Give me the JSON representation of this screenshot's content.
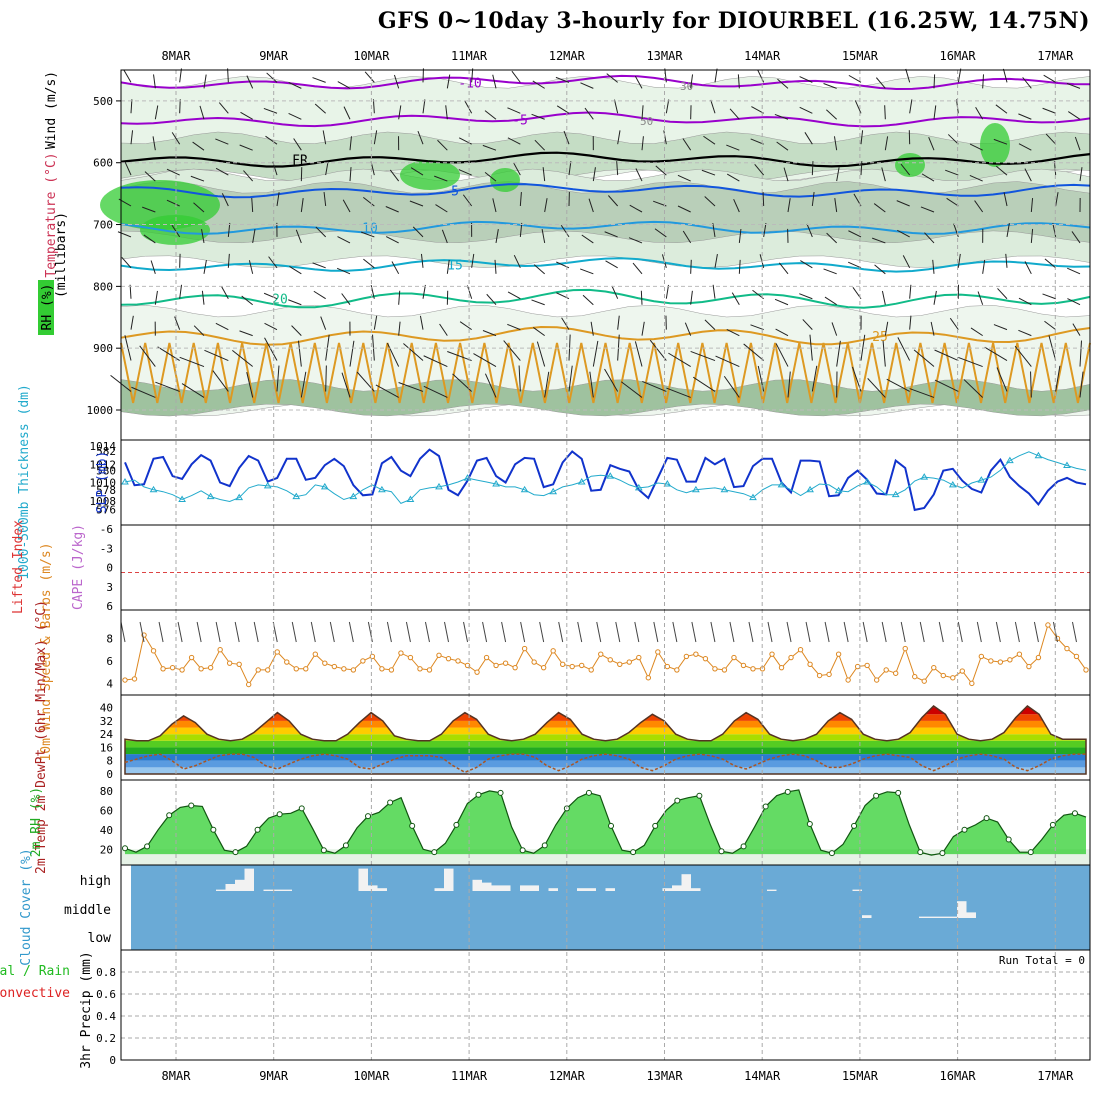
{
  "title": "GFS 0~10day 3-hourly for DIOURBEL (16.25W, 14.75N)",
  "dates": [
    "8MAR",
    "9MAR",
    "10MAR",
    "11MAR",
    "12MAR",
    "13MAR",
    "14MAR",
    "15MAR",
    "16MAR",
    "17MAR"
  ],
  "run_total": "Run Total = 0",
  "colors": {
    "rh_green": "#33cc33",
    "temp_purple": "#9900cc",
    "temp_blue": "#1155dd",
    "temp_cyan": "#11aacc",
    "temp_teal": "#11bb88",
    "temp_orange": "#dd9922",
    "slp": "#1133cc",
    "thick": "#22aacc",
    "wind": "#dd8822",
    "cloud": "#6aaad6",
    "rh2m": "#22cc22"
  },
  "chart_data": [
    {
      "type": "heatmap",
      "panel": "upper-air",
      "ylabel": "(millibars)",
      "labels_left": {
        "wind": "Wind (m/s)",
        "temp": "Temperature (°C)",
        "rh": "RH (%)"
      },
      "y_ticks": [
        "500",
        "600",
        "700",
        "800",
        "900",
        "1000"
      ],
      "temp_contours": [
        {
          "label": "-10",
          "level_mb": 470
        },
        {
          "label": "-5",
          "level_mb": 530
        },
        {
          "label": "FR",
          "level_mb": 595
        },
        {
          "label": "5",
          "level_mb": 645
        },
        {
          "label": "10",
          "level_mb": 705
        },
        {
          "label": "15",
          "level_mb": 765
        },
        {
          "label": "20",
          "level_mb": 820
        },
        {
          "label": "25",
          "level_mb": 880
        }
      ],
      "rh_labels": [
        "30",
        "50"
      ]
    },
    {
      "type": "line",
      "panel": "slp-thickness",
      "ylabel_left": "1000-500mb Thickness (dm)",
      "ylabel_right": "SLP (mb)",
      "y_left_ticks": [
        "576",
        "578",
        "580",
        "582"
      ],
      "y_right_ticks": [
        "1008",
        "1010",
        "1012",
        "1014"
      ],
      "series": [
        {
          "name": "SLP (mb)",
          "values": [
            1012.2,
            1009.7,
            1009.8,
            1012.6,
            1012.8,
            1010.7,
            1010.4,
            1012.0,
            1013.0,
            1012.4,
            1010.0,
            1009.6,
            1011.6,
            1012.9,
            1012.4,
            1010.1,
            1010.5,
            1012.6,
            1012.6,
            1010.3,
            1010.5,
            1011.9,
            1012.6,
            1011.8,
            1009.7,
            1008.6,
            1008.7,
            1012.1,
            1012.8,
            1011.3,
            1010.7,
            1012.6,
            1013.6,
            1012.9,
            1009.2,
            1008.6,
            1010.2,
            1012.4,
            1012.7,
            1010.7,
            1010.0,
            1012.0,
            1012.7,
            1012.6,
            1009.5,
            1009.8,
            1012.2,
            1013.4,
            1012.6,
            1009.1,
            1009.2,
            1011.9,
            1011.5,
            1011.2,
            1009.2,
            1008.3,
            1010.5,
            1012.7,
            1012.5,
            1010.1,
            1010.1,
            1012.7,
            1012.0,
            1012.6,
            1009.5,
            1009.6,
            1011.8,
            1012.6,
            1012.6,
            1010.0,
            1008.9,
            1012.4,
            1012.4,
            1012.3,
            1008.5,
            1008.6,
            1010.5,
            1011.3,
            1010.3,
            1008.8,
            1008.7,
            1012.4,
            1011.6,
            1007.0,
            1007.2,
            1008.7,
            1011.3,
            1011.5,
            1010.2,
            1009.3,
            1008.9,
            1011.3,
            1012.5,
            1010.6,
            1009.6,
            1008.8,
            1007.6,
            1009.1,
            1010.1,
            1010.5,
            1010.0,
            1009.8
          ]
        },
        {
          "name": "1000-500mb Thickness (dm)",
          "values": [
            578.8,
            579.0,
            578.3,
            578.0,
            577.8,
            577.5,
            577.0,
            577.4,
            577.9,
            577.3,
            577.0,
            576.8,
            577.2,
            578.2,
            578.5,
            578.4,
            578.3,
            577.9,
            577.3,
            577.5,
            578.5,
            578.3,
            577.6,
            577.0,
            577.3,
            578.0,
            578.5,
            578.0,
            577.8,
            576.6,
            577.0,
            578.0,
            578.2,
            578.3,
            578.5,
            578.8,
            579.2,
            579.0,
            578.8,
            578.6,
            578.3,
            578.3,
            578.0,
            577.5,
            577.4,
            577.8,
            578.3,
            578.5,
            578.8,
            579.4,
            579.5,
            579.4,
            579.0,
            578.5,
            578.2,
            578.3,
            578.7,
            578.6,
            578.0,
            577.7,
            578.0,
            578.1,
            578.2,
            578.0,
            577.8,
            577.6,
            577.2,
            578.0,
            578.5,
            578.5,
            578.0,
            577.4,
            578.0,
            578.6,
            578.5,
            577.9,
            577.8,
            578.4,
            578.8,
            578.3,
            577.5,
            577.5,
            578.0,
            578.9,
            579.3,
            579.2,
            579.0,
            578.5,
            578.2,
            578.7,
            579.0,
            579.3,
            580.0,
            581.0,
            581.5,
            581.9,
            581.5,
            581.1,
            580.8,
            580.5,
            580.2,
            580.0
          ]
        }
      ]
    },
    {
      "type": "line",
      "panel": "cape-li",
      "ylabel_left": "Lifted Index",
      "ylabel_right": "CAPE (J/kg)",
      "y_ticks": [
        "-6",
        "-3",
        "0",
        "3",
        "6"
      ],
      "series": [
        {
          "name": "Lifted Index",
          "values": []
        }
      ]
    },
    {
      "type": "line",
      "panel": "wind10m",
      "ylabel": "10m Wind Speed & Barbs (m/s)",
      "y_ticks": [
        "4",
        "6",
        "8"
      ],
      "series": [
        {
          "name": "10m Wind Speed",
          "values": [
            4.3,
            4.4,
            8.3,
            6.9,
            5.3,
            5.4,
            5.2,
            6.3,
            5.3,
            5.4,
            7.0,
            5.8,
            5.7,
            3.9,
            5.2,
            5.2,
            6.8,
            5.9,
            5.3,
            5.3,
            6.6,
            5.8,
            5.5,
            5.3,
            5.2,
            6.0,
            6.4,
            5.3,
            5.2,
            6.7,
            6.3,
            5.3,
            5.2,
            6.5,
            6.2,
            6.0,
            5.6,
            5.0,
            6.3,
            5.6,
            5.8,
            5.4,
            7.1,
            5.9,
            5.4,
            6.9,
            5.7,
            5.5,
            5.6,
            5.2,
            6.6,
            6.1,
            5.7,
            5.9,
            6.3,
            4.5,
            6.8,
            5.5,
            5.2,
            6.4,
            6.6,
            6.2,
            5.3,
            5.2,
            6.3,
            5.6,
            5.3,
            5.3,
            6.6,
            5.4,
            6.3,
            7.0,
            5.7,
            4.7,
            4.8,
            6.6,
            4.3,
            5.5,
            5.6,
            4.3,
            5.2,
            4.9,
            7.1,
            4.6,
            4.2,
            5.4,
            4.7,
            4.5,
            5.1,
            4.0,
            6.4,
            6.0,
            5.9,
            6.1,
            6.6,
            5.5,
            6.3,
            9.2,
            8.0,
            7.1,
            6.4,
            5.2
          ]
        }
      ]
    },
    {
      "type": "area",
      "panel": "temp-dewpt",
      "ylabel": "2m Temp 2m DewPt (6hr Min/Max) (°C)",
      "y_ticks": [
        "0",
        "8",
        "16",
        "24",
        "32",
        "40"
      ],
      "series": [
        {
          "name": "2m Temp",
          "values": [
            21,
            20,
            20,
            23,
            30,
            35,
            31,
            24,
            21,
            20,
            21,
            25,
            31,
            37,
            32,
            24,
            21,
            20,
            20,
            24,
            31,
            37,
            32,
            23,
            21,
            20,
            20,
            24,
            32,
            37,
            33,
            24,
            21,
            20,
            21,
            24,
            31,
            37,
            33,
            24,
            21,
            20,
            21,
            25,
            31,
            36,
            32,
            24,
            21,
            20,
            20,
            24,
            32,
            37,
            33,
            24,
            21,
            20,
            21,
            24,
            32,
            37,
            33,
            24,
            21,
            20,
            21,
            25,
            34,
            41,
            36,
            24,
            21,
            20,
            21,
            25,
            34,
            41,
            36,
            24,
            21,
            21,
            21
          ]
        },
        {
          "name": "2m DewPt",
          "values": [
            7,
            9,
            11,
            12,
            8,
            3,
            5,
            8,
            11,
            12,
            12,
            10,
            5,
            3,
            6,
            9,
            11,
            12,
            11,
            9,
            4,
            3,
            6,
            9,
            11,
            11,
            11,
            10,
            5,
            1,
            4,
            9,
            11,
            12,
            12,
            10,
            5,
            2,
            5,
            9,
            11,
            12,
            11,
            9,
            4,
            2,
            5,
            9,
            11,
            12,
            11,
            9,
            5,
            3,
            6,
            9,
            11,
            12,
            11,
            8,
            4,
            4,
            6,
            9,
            11,
            12,
            11,
            10,
            5,
            2,
            5,
            9,
            11,
            12,
            11,
            9,
            4,
            2,
            5,
            9,
            11,
            12,
            12
          ]
        }
      ]
    },
    {
      "type": "area",
      "panel": "rh2m",
      "ylabel": "2m RH (%)",
      "y_ticks": [
        "20",
        "40",
        "60",
        "80"
      ],
      "series": [
        {
          "name": "2m RH",
          "values": [
            21,
            17,
            23,
            40,
            55,
            63,
            65,
            64,
            40,
            19,
            17,
            23,
            40,
            52,
            56,
            57,
            62,
            41,
            19,
            16,
            24,
            42,
            54,
            58,
            68,
            73,
            44,
            20,
            17,
            26,
            45,
            67,
            76,
            80,
            78,
            43,
            19,
            16,
            24,
            45,
            62,
            73,
            78,
            75,
            44,
            19,
            17,
            24,
            44,
            60,
            70,
            73,
            75,
            45,
            18,
            16,
            23,
            43,
            64,
            75,
            79,
            81,
            46,
            19,
            16,
            25,
            44,
            65,
            75,
            79,
            78,
            45,
            17,
            14,
            16,
            33,
            40,
            45,
            52,
            48,
            30,
            17,
            17,
            30,
            45,
            55,
            57,
            53
          ]
        }
      ]
    },
    {
      "type": "bar",
      "panel": "cloud-cover",
      "ylabel": "Cloud Cover (%)",
      "y_ticks": [
        "high",
        "middle",
        "low"
      ],
      "series": [
        {
          "name": "high",
          "values": [
            0,
            0,
            0,
            0,
            0,
            0,
            0,
            0,
            0,
            0,
            5,
            25,
            40,
            80,
            0,
            5,
            5,
            5,
            0,
            0,
            0,
            0,
            0,
            0,
            0,
            80,
            20,
            10,
            0,
            0,
            0,
            0,
            0,
            10,
            80,
            0,
            0,
            40,
            30,
            20,
            20,
            0,
            20,
            20,
            0,
            10,
            0,
            0,
            10,
            10,
            0,
            10,
            0,
            0,
            0,
            0,
            0,
            10,
            20,
            60,
            10,
            0,
            0,
            0,
            0,
            0,
            0,
            0,
            5,
            0,
            0,
            0,
            0,
            0,
            0,
            0,
            0,
            5,
            0,
            0,
            0,
            0,
            0,
            0,
            0,
            0,
            0,
            0,
            0,
            0,
            0,
            0,
            0,
            0,
            0,
            0,
            0,
            0,
            0,
            0,
            0,
            0
          ]
        },
        {
          "name": "middle",
          "values": [
            0,
            0,
            0,
            0,
            0,
            0,
            0,
            0,
            0,
            0,
            0,
            0,
            0,
            0,
            0,
            0,
            0,
            0,
            0,
            0,
            0,
            0,
            0,
            0,
            0,
            0,
            0,
            0,
            0,
            0,
            0,
            0,
            0,
            0,
            0,
            0,
            0,
            0,
            0,
            0,
            0,
            0,
            0,
            0,
            0,
            0,
            0,
            0,
            0,
            0,
            0,
            0,
            0,
            0,
            0,
            0,
            0,
            0,
            0,
            0,
            0,
            0,
            0,
            0,
            0,
            0,
            0,
            0,
            0,
            0,
            0,
            0,
            0,
            0,
            0,
            0,
            0,
            0,
            10,
            0,
            0,
            0,
            0,
            0,
            5,
            5,
            5,
            5,
            60,
            20,
            0,
            0,
            0,
            0,
            0,
            0,
            0,
            0,
            0,
            0,
            0,
            0
          ]
        }
      ]
    },
    {
      "type": "bar",
      "panel": "precip",
      "ylabel": "3hr Precip (mm)",
      "legend": [
        "Total / Rain",
        "Convective"
      ],
      "y_ticks": [
        "0",
        "0.2",
        "0.4",
        "0.6",
        "0.8"
      ],
      "ylim": [
        0,
        1
      ],
      "series": [
        {
          "name": "Total / Rain",
          "values": []
        }
      ]
    }
  ]
}
